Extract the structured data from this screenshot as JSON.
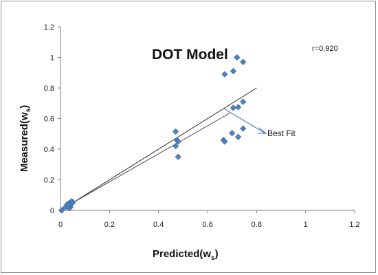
{
  "chart_data": {
    "type": "scatter",
    "title": "DOT Model",
    "xlabel": {
      "main": "Predicted(w",
      "sub": "s",
      "close": ")"
    },
    "ylabel": {
      "main": "Measured(w",
      "sub": "s",
      "close": ")"
    },
    "xlim": [
      0,
      1.2
    ],
    "ylim": [
      0,
      1.2
    ],
    "xticks": [
      0,
      0.2,
      0.4,
      0.6,
      0.8,
      1,
      1.2
    ],
    "yticks": [
      0,
      0.2,
      0.4,
      0.6,
      0.8,
      1,
      1.2
    ],
    "xtick_labels": [
      "0",
      "0.2",
      "0.4",
      "0.6",
      "0.8",
      "1",
      "1.2"
    ],
    "ytick_labels": [
      "0",
      "0.2",
      "0.4",
      "0.6",
      "0.8",
      "1",
      "1.2"
    ],
    "grid": false,
    "annotation": "r=0.920",
    "best_fit_label": "Best Fit",
    "best_fit_line": {
      "x": [
        0,
        0.8
      ],
      "y": [
        0,
        0.8
      ]
    },
    "marker_color": "#4f81bd",
    "series": [
      {
        "x": [
          0.005,
          0.02,
          0.028,
          0.033,
          0.038,
          0.04,
          0.044,
          0.046,
          0.05,
          0.035,
          0.03,
          0.47,
          0.475,
          0.48,
          0.48,
          0.47,
          0.665,
          0.67,
          0.67,
          0.705,
          0.705,
          0.72,
          0.725,
          0.745,
          0.745,
          0.7,
          0.725,
          0.745
        ],
        "y": [
          0.0,
          0.02,
          0.04,
          0.03,
          0.05,
          0.02,
          0.04,
          0.06,
          0.05,
          0.015,
          0.03,
          0.515,
          0.46,
          0.45,
          0.35,
          0.42,
          0.46,
          0.45,
          0.89,
          0.91,
          0.67,
          1.0,
          0.675,
          0.97,
          0.71,
          0.505,
          0.48,
          0.535
        ]
      }
    ]
  }
}
